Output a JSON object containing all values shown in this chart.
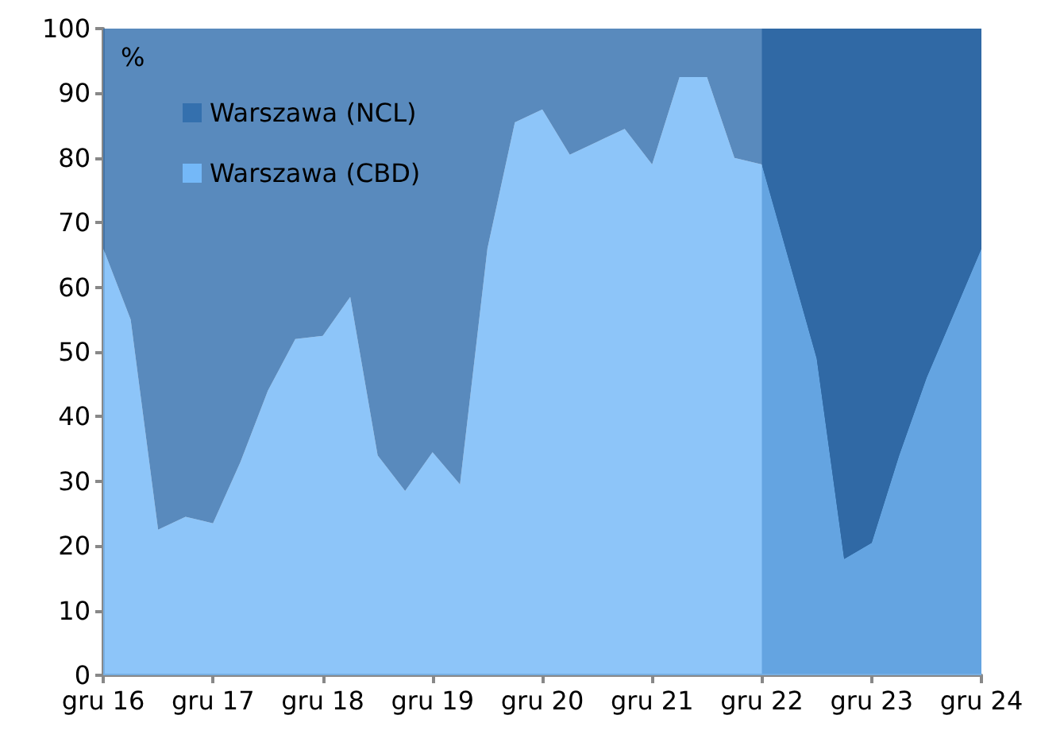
{
  "chart_data": {
    "type": "area",
    "stacked": true,
    "ylabel": "%",
    "categories": [
      "gru 16",
      null,
      null,
      null,
      "gru 17",
      null,
      null,
      null,
      "gru 18",
      null,
      null,
      null,
      "gru 19",
      null,
      null,
      null,
      "gru 20",
      null,
      null,
      null,
      "gru 21",
      null,
      null,
      null,
      "gru 22",
      null,
      null,
      null,
      "gru 23",
      null,
      null,
      null,
      "gru 24"
    ],
    "series": [
      {
        "name": "Warszawa (CBD)",
        "color": "#74b8f8",
        "values": [
          66,
          55,
          22.5,
          24.5,
          23.5,
          33,
          44,
          52,
          52.5,
          58.5,
          34,
          28.5,
          34.5,
          29.5,
          66,
          85.5,
          87.5,
          80.5,
          82.5,
          84.5,
          79,
          92.5,
          92.5,
          80,
          79,
          64,
          49,
          18,
          20.5,
          34,
          46,
          56,
          66
        ]
      },
      {
        "name": "Warszawa (NCL)",
        "color": "#3470ae",
        "values": [
          34,
          45,
          77.5,
          75.5,
          76.5,
          67,
          56,
          48,
          47.5,
          41.5,
          66,
          71.5,
          65.5,
          70.5,
          34,
          14.5,
          12.5,
          19.5,
          17.5,
          15.5,
          21,
          7.5,
          7.5,
          20,
          21,
          36,
          51,
          82,
          79.5,
          66,
          54,
          44,
          34
        ]
      }
    ],
    "ylim": [
      0,
      100
    ],
    "yticks": [
      0,
      10,
      20,
      30,
      40,
      50,
      60,
      70,
      80,
      90,
      100
    ],
    "bands": [
      {
        "axis": "x",
        "from": "gru 22",
        "to": "gru 24",
        "color": "#1e4a7a"
      }
    ],
    "legend": "top left",
    "grid": false
  }
}
